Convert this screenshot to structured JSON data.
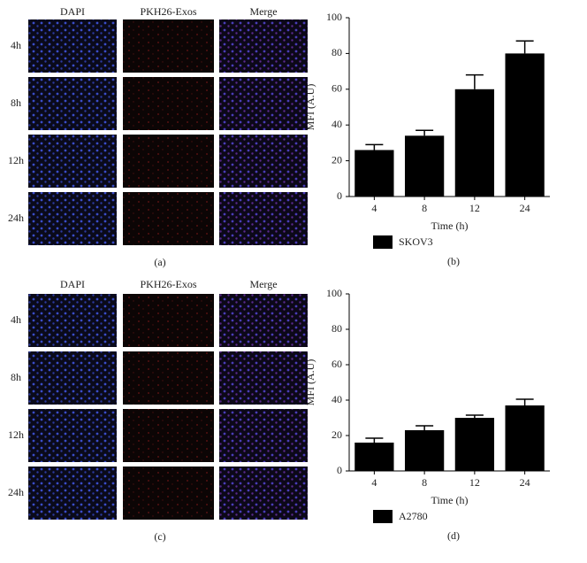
{
  "image_panels": [
    {
      "columns": [
        "DAPI",
        "PKH26-Exos",
        "Merge"
      ],
      "rows": [
        "4h",
        "8h",
        "12h",
        "24h"
      ],
      "caption": "(a)"
    },
    {
      "columns": [
        "DAPI",
        "PKH26-Exos",
        "Merge"
      ],
      "rows": [
        "4h",
        "8h",
        "12h",
        "24h"
      ],
      "caption": "(c)"
    }
  ],
  "chart_data": [
    {
      "type": "bar",
      "categories": [
        "4",
        "8",
        "12",
        "24"
      ],
      "series": [
        {
          "name": "SKOV3",
          "color": "#000000",
          "values": [
            26,
            34,
            60,
            80
          ],
          "errors": [
            3,
            3,
            8,
            7
          ]
        }
      ],
      "x_label": "Time (h)",
      "y_label": "MFI (A.U)",
      "ylim": [
        0,
        100
      ],
      "yticks": [
        0,
        20,
        40,
        60,
        80,
        100
      ],
      "caption": "(b)"
    },
    {
      "type": "bar",
      "categories": [
        "4",
        "8",
        "12",
        "24"
      ],
      "series": [
        {
          "name": "A2780",
          "color": "#000000",
          "values": [
            16,
            23,
            30,
            37
          ],
          "errors": [
            2.5,
            2.5,
            1.5,
            3.5
          ]
        }
      ],
      "x_label": "Time (h)",
      "y_label": "MFI (A.U)",
      "ylim": [
        0,
        100
      ],
      "yticks": [
        0,
        20,
        40,
        60,
        80,
        100
      ],
      "caption": "(d)"
    }
  ]
}
